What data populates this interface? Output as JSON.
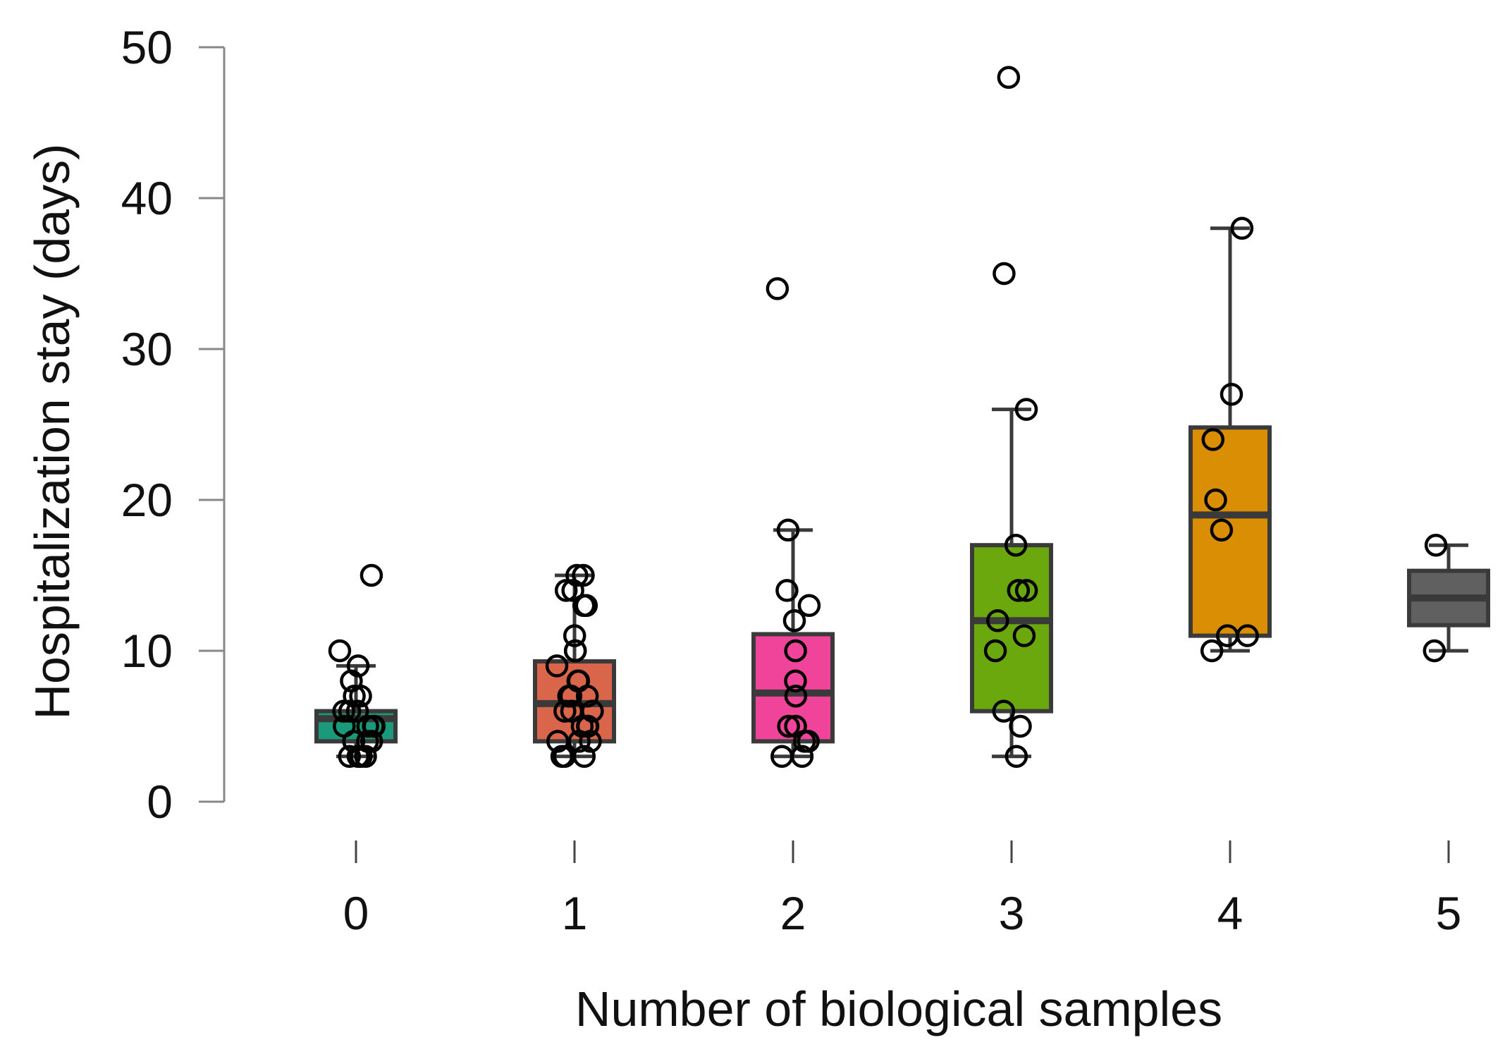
{
  "chart_data": {
    "type": "box",
    "title": "",
    "xlabel": "Number of biological samples",
    "ylabel": "Hospitalization stay (days)",
    "ylim": [
      0,
      50
    ],
    "yticks": [
      0,
      10,
      20,
      30,
      40,
      50
    ],
    "ytick_labels": [
      "0",
      "10",
      "20",
      "30",
      "40",
      "50"
    ],
    "categories": [
      "0",
      "1",
      "2",
      "3",
      "4",
      "5"
    ],
    "groups": [
      {
        "label": "0",
        "color": "#1a9a7a",
        "min": 3,
        "q1": 4,
        "median": 5.5,
        "q3": 6,
        "max": 9,
        "points": [
          15,
          10,
          9,
          8,
          7,
          7,
          6,
          6,
          6,
          5,
          5,
          5,
          5,
          4,
          4,
          4,
          4,
          3,
          3,
          3,
          3
        ]
      },
      {
        "label": "1",
        "color": "#d9654a",
        "min": 3,
        "q1": 4,
        "median": 6.5,
        "q3": 9.3,
        "max": 15,
        "points": [
          15,
          15,
          14,
          14,
          13,
          13,
          11,
          10,
          10,
          9,
          8,
          8,
          7,
          7,
          7,
          6,
          6,
          6,
          5,
          5,
          5,
          4,
          4,
          4,
          3,
          3,
          3
        ]
      },
      {
        "label": "2",
        "color": "#f0449a",
        "min": 3,
        "q1": 4,
        "median": 7.2,
        "q3": 11.1,
        "max": 18,
        "points": [
          34,
          18,
          14,
          13,
          12,
          10,
          8,
          7,
          5,
          5,
          4,
          4,
          3,
          3
        ]
      },
      {
        "label": "3",
        "color": "#6aa80e",
        "min": 3,
        "q1": 6,
        "median": 12,
        "q3": 17,
        "max": 26,
        "points": [
          48,
          35,
          26,
          17,
          14,
          14,
          12,
          11,
          10,
          6,
          5,
          3
        ]
      },
      {
        "label": "4",
        "color": "#d98e04",
        "min": 10,
        "q1": 11,
        "median": 19,
        "q3": 24.8,
        "max": 38,
        "points": [
          38,
          27,
          24,
          20,
          18,
          11,
          11,
          10
        ]
      },
      {
        "label": "5",
        "color": "#606060",
        "min": 10,
        "q1": 11.7,
        "median": 13.5,
        "q3": 15.3,
        "max": 17,
        "points": [
          17,
          10
        ]
      }
    ]
  }
}
